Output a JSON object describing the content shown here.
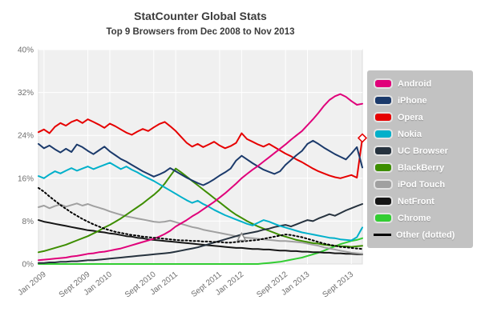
{
  "chart_data": {
    "type": "line",
    "title": "StatCounter Global Stats",
    "subtitle": "Top 9 Browsers from Dec 2008 to Nov 2013",
    "xlabel": "",
    "ylabel": "",
    "ylim": [
      0,
      40
    ],
    "grid": true,
    "legend_position": "right",
    "plot_bg": "#f0f0f0",
    "grid_color": "#ffffff",
    "axis_text_color": "#6e6e6e",
    "months_start": "Dec 2008",
    "months_end": "Nov 2013",
    "n_months": 60,
    "y_ticks": [
      "0%",
      "8%",
      "16%",
      "24%",
      "32%",
      "40%"
    ],
    "x_tick_labels": [
      "Jan 2009",
      "Sept 2009",
      "Jan 2010",
      "Sept 2010",
      "Jan 2011",
      "Sept 2011",
      "Jan 2012",
      "Sept 2012",
      "Jan 2013",
      "Sept 2013"
    ],
    "x_tick_month_index": [
      1,
      9,
      13,
      21,
      25,
      33,
      37,
      45,
      49,
      57
    ],
    "series": [
      {
        "name": "Android",
        "legend_label": "Android",
        "color": "#e0007a",
        "dotted": false,
        "values": [
          0.7,
          0.8,
          0.9,
          1.0,
          1.1,
          1.2,
          1.4,
          1.5,
          1.7,
          1.9,
          2.0,
          2.2,
          2.3,
          2.5,
          2.7,
          2.9,
          3.2,
          3.5,
          3.8,
          4.1,
          4.4,
          4.7,
          5.1,
          5.6,
          6.2,
          7.0,
          7.6,
          8.2,
          8.9,
          9.5,
          10.2,
          10.9,
          11.6,
          12.4,
          13.2,
          14.1,
          15.0,
          16.0,
          16.8,
          17.6,
          18.3,
          19.1,
          19.9,
          20.7,
          21.5,
          22.3,
          23.2,
          24.0,
          24.8,
          25.9,
          27.0,
          28.2,
          29.5,
          30.6,
          31.3,
          31.7,
          31.2,
          30.4,
          29.7,
          29.9
        ]
      },
      {
        "name": "iPhone",
        "legend_label": "iPhone",
        "color": "#1b3a6b",
        "dotted": false,
        "values": [
          22.4,
          21.6,
          22.1,
          21.4,
          20.8,
          21.5,
          20.9,
          22.3,
          21.8,
          21.1,
          20.5,
          21.2,
          21.9,
          21.0,
          20.3,
          19.6,
          19.1,
          18.5,
          17.9,
          17.3,
          16.8,
          16.3,
          16.7,
          17.2,
          17.9,
          17.3,
          16.7,
          16.1,
          15.6,
          15.1,
          14.7,
          15.2,
          15.8,
          16.5,
          17.1,
          17.8,
          19.3,
          20.2,
          19.5,
          18.8,
          18.2,
          17.6,
          17.2,
          16.8,
          17.3,
          18.5,
          19.4,
          20.3,
          21.1,
          22.4,
          23.0,
          22.4,
          21.7,
          21.1,
          20.5,
          20.0,
          19.5,
          20.6,
          21.8,
          18.0
        ]
      },
      {
        "name": "Opera",
        "legend_label": "Opera",
        "color": "#e60000",
        "dotted": false,
        "values": [
          24.6,
          25.1,
          24.4,
          25.6,
          26.3,
          25.8,
          26.5,
          26.9,
          26.3,
          27.0,
          26.5,
          26.0,
          25.4,
          26.2,
          25.7,
          25.1,
          24.5,
          24.1,
          24.7,
          25.2,
          24.8,
          25.5,
          26.1,
          26.5,
          25.7,
          24.8,
          23.7,
          22.6,
          21.9,
          22.4,
          21.8,
          22.3,
          22.8,
          22.1,
          21.6,
          22.0,
          22.6,
          24.4,
          23.3,
          22.8,
          22.3,
          21.9,
          22.4,
          21.8,
          21.2,
          20.6,
          20.1,
          19.5,
          19.0,
          18.4,
          17.8,
          17.3,
          16.9,
          16.5,
          16.2,
          16.0,
          16.3,
          16.6,
          16.1,
          23.5
        ]
      },
      {
        "name": "Nokia",
        "legend_label": "Nokia",
        "color": "#00b0ca",
        "dotted": false,
        "values": [
          16.4,
          16.0,
          16.7,
          17.3,
          16.9,
          17.4,
          17.9,
          17.4,
          17.8,
          18.2,
          17.7,
          18.1,
          18.5,
          18.9,
          18.3,
          17.7,
          18.2,
          17.6,
          17.1,
          16.5,
          16.0,
          15.5,
          14.9,
          14.3,
          13.7,
          13.1,
          12.5,
          11.9,
          11.4,
          11.8,
          11.2,
          10.7,
          10.1,
          9.6,
          9.1,
          8.7,
          8.3,
          7.9,
          7.5,
          7.2,
          7.7,
          8.2,
          7.9,
          7.5,
          7.1,
          6.8,
          6.5,
          6.2,
          5.9,
          5.7,
          5.5,
          5.3,
          5.1,
          4.9,
          4.8,
          4.6,
          4.5,
          4.4,
          5.0,
          6.8
        ]
      },
      {
        "name": "UC Browser",
        "legend_label": "UC Browser",
        "color": "#26323e",
        "dotted": false,
        "values": [
          0.2,
          0.2,
          0.3,
          0.3,
          0.4,
          0.4,
          0.5,
          0.5,
          0.6,
          0.7,
          0.7,
          0.8,
          0.9,
          1.0,
          1.1,
          1.2,
          1.3,
          1.4,
          1.5,
          1.6,
          1.7,
          1.8,
          1.9,
          2.0,
          2.1,
          2.3,
          2.5,
          2.7,
          2.9,
          3.1,
          3.4,
          3.7,
          4.0,
          4.3,
          4.6,
          4.9,
          5.2,
          5.5,
          5.7,
          5.9,
          6.1,
          6.4,
          6.6,
          6.9,
          7.1,
          7.3,
          7.0,
          7.4,
          7.8,
          8.2,
          8.0,
          8.5,
          8.9,
          9.3,
          9.0,
          9.5,
          10.0,
          10.4,
          10.8,
          11.2
        ]
      },
      {
        "name": "BlackBerry",
        "legend_label": "BlackBerry",
        "color": "#3d8e00",
        "dotted": false,
        "values": [
          2.2,
          2.4,
          2.7,
          3.0,
          3.3,
          3.6,
          4.0,
          4.4,
          4.8,
          5.2,
          5.7,
          6.2,
          6.8,
          7.3,
          7.9,
          8.5,
          9.2,
          9.9,
          10.6,
          11.3,
          12.1,
          12.9,
          13.8,
          15.0,
          16.4,
          17.8,
          17.1,
          16.3,
          15.5,
          14.7,
          13.9,
          13.1,
          12.3,
          11.5,
          10.7,
          9.9,
          9.2,
          8.6,
          8.0,
          7.5,
          7.0,
          6.6,
          6.2,
          5.8,
          5.4,
          5.1,
          4.8,
          4.5,
          4.3,
          4.1,
          3.9,
          3.8,
          3.6,
          3.5,
          3.4,
          3.3,
          3.3,
          3.2,
          3.3,
          3.4
        ]
      },
      {
        "name": "iPod Touch",
        "legend_label": "iPod Touch",
        "color": "#a0a0a0",
        "dotted": false,
        "values": [
          10.6,
          10.9,
          10.4,
          10.8,
          11.1,
          10.7,
          11.0,
          11.3,
          10.9,
          11.2,
          10.8,
          10.5,
          10.2,
          9.8,
          9.5,
          9.2,
          8.9,
          8.7,
          8.5,
          8.3,
          8.1,
          7.9,
          7.8,
          7.9,
          8.1,
          7.8,
          7.5,
          7.2,
          6.9,
          6.7,
          6.4,
          6.2,
          6.0,
          5.8,
          5.6,
          5.4,
          5.2,
          5.0,
          4.9,
          4.8,
          4.7,
          4.6,
          4.5,
          4.4,
          4.3,
          4.3,
          4.2,
          4.1,
          4.0,
          3.8,
          3.6,
          3.4,
          3.1,
          2.9,
          2.7,
          2.5,
          2.3,
          2.1,
          2.0,
          1.9
        ]
      },
      {
        "name": "NetFront",
        "legend_label": "NetFront",
        "color": "#161616",
        "dotted": false,
        "values": [
          8.2,
          7.9,
          7.7,
          7.5,
          7.3,
          7.1,
          6.9,
          6.7,
          6.5,
          6.3,
          6.2,
          6.0,
          5.9,
          5.7,
          5.6,
          5.4,
          5.2,
          5.1,
          4.9,
          4.8,
          4.6,
          4.5,
          4.4,
          4.3,
          4.2,
          4.1,
          4.0,
          3.9,
          3.8,
          3.7,
          3.6,
          3.5,
          3.4,
          3.3,
          3.2,
          3.1,
          3.0,
          3.0,
          2.9,
          2.8,
          2.8,
          2.7,
          2.7,
          2.6,
          2.5,
          2.5,
          2.4,
          2.4,
          2.3,
          2.3,
          2.2,
          2.2,
          2.1,
          2.1,
          2.0,
          2.0,
          1.9,
          1.9,
          1.8,
          1.8
        ]
      },
      {
        "name": "Chrome",
        "legend_label": "Chrome",
        "color": "#32cd32",
        "dotted": false,
        "values": [
          0.0,
          0.0,
          0.0,
          0.0,
          0.0,
          0.0,
          0.0,
          0.0,
          0.0,
          0.0,
          0.0,
          0.0,
          0.0,
          0.0,
          0.0,
          0.0,
          0.0,
          0.0,
          0.0,
          0.0,
          0.0,
          0.0,
          0.0,
          0.0,
          0.0,
          0.0,
          0.0,
          0.0,
          0.0,
          0.0,
          0.0,
          0.0,
          0.0,
          0.0,
          0.0,
          0.0,
          0.0,
          0.0,
          0.0,
          0.0,
          0.0,
          0.1,
          0.2,
          0.3,
          0.4,
          0.6,
          0.8,
          1.0,
          1.2,
          1.5,
          1.8,
          2.1,
          2.5,
          2.9,
          3.3,
          3.7,
          4.0,
          4.3,
          4.5,
          4.8
        ]
      },
      {
        "name": "Other",
        "legend_label": "Other (dotted)",
        "color": "#000000",
        "dotted": true,
        "values": [
          14.2,
          13.5,
          12.6,
          11.8,
          11.0,
          10.3,
          9.6,
          9.0,
          8.4,
          7.9,
          7.4,
          7.0,
          6.6,
          6.3,
          6.0,
          5.8,
          5.6,
          5.4,
          5.3,
          5.1,
          5.0,
          4.9,
          4.8,
          4.7,
          4.6,
          4.5,
          4.4,
          4.4,
          4.3,
          4.3,
          4.2,
          4.2,
          4.1,
          4.1,
          4.0,
          4.0,
          4.1,
          4.2,
          4.3,
          4.4,
          4.5,
          4.7,
          4.9,
          5.1,
          5.3,
          5.5,
          5.4,
          5.2,
          5.0,
          4.7,
          4.4,
          4.1,
          3.8,
          3.6,
          3.4,
          3.2,
          3.1,
          3.0,
          2.9,
          2.8
        ]
      }
    ],
    "markers": [
      {
        "series": "Opera",
        "shape": "diamond",
        "month_index": 59,
        "value": 23.5,
        "color": "#e60000"
      },
      {
        "series": "iPod Touch",
        "shape": "triangle",
        "month_index": 37,
        "value": 5.0,
        "color": "#8a8a8a"
      }
    ]
  },
  "legend": {
    "background": "#c2c2c2"
  }
}
